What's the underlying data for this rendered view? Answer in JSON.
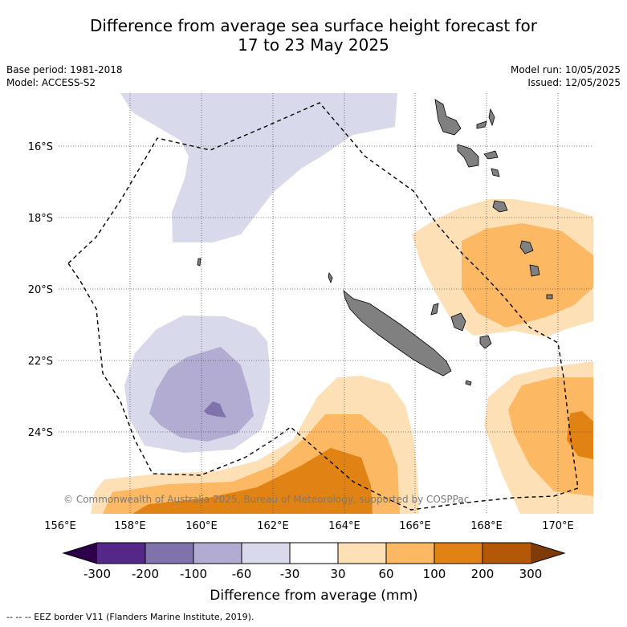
{
  "header": {
    "title_line1": "Difference from average sea surface height forecast for",
    "title_line2": "17 to 23 May 2025",
    "base_period": "Base period: 1981-2018",
    "model": "Model: ACCESS-S2",
    "model_run": "Model run: 10/05/2025",
    "issued": "Issued: 12/05/2025"
  },
  "map": {
    "lat_labels": [
      "16°S",
      "18°S",
      "20°S",
      "22°S",
      "24°S"
    ],
    "lon_labels": [
      "156°E",
      "158°E",
      "160°E",
      "162°E",
      "164°E",
      "166°E",
      "168°E",
      "170°E"
    ],
    "copyright": "© Commonwealth of Australia 2025, Bureau of Meteorology, supported by COSPPac"
  },
  "colorbar": {
    "tick_labels": [
      "-300",
      "-200",
      "-100",
      "-60",
      "-30",
      "30",
      "60",
      "100",
      "200",
      "300"
    ],
    "title": "Difference from average (mm)",
    "colors": {
      "below_min": "#2d004b",
      "c1": "#542788",
      "c2": "#8073ac",
      "c3": "#b2abd2",
      "c4": "#d8daeb",
      "c5": "#ffffff",
      "c6": "#fee0b6",
      "c7": "#fdb863",
      "c8": "#e08214",
      "c9": "#b35806",
      "above_max": "#7f3b08"
    }
  },
  "footer": {
    "eez_legend": "--  --  -- EEZ border V11 (Flanders Marine Institute, 2019)."
  }
}
